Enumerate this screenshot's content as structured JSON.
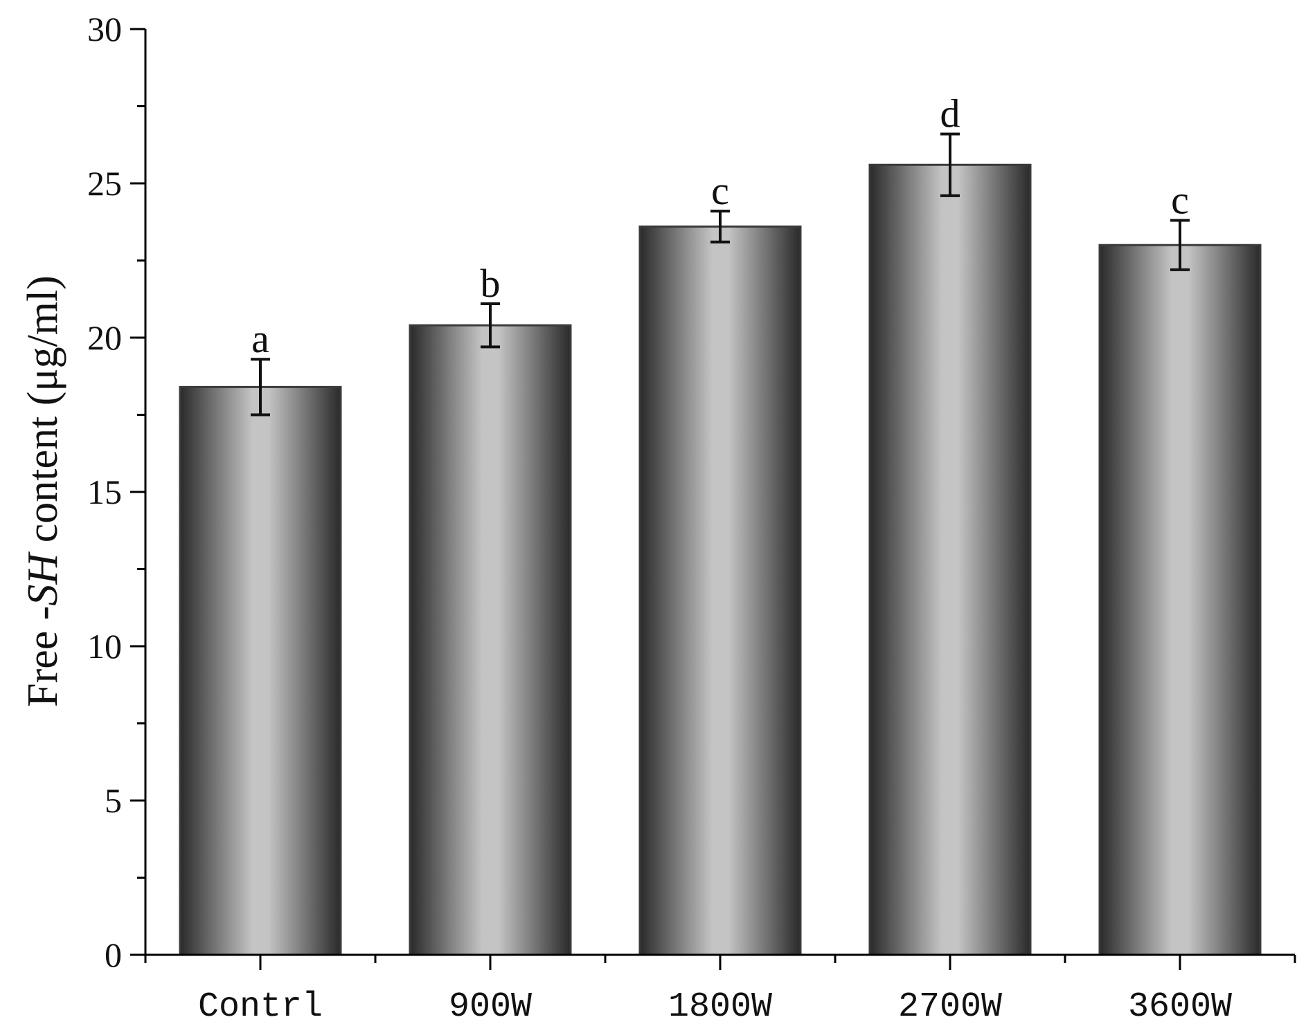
{
  "chart_data": {
    "type": "bar",
    "categories": [
      "Contrl",
      "900W",
      "1800W",
      "2700W",
      "3600W"
    ],
    "values": [
      18.4,
      20.4,
      23.6,
      25.6,
      23.0
    ],
    "errors": [
      0.9,
      0.7,
      0.5,
      1.0,
      0.8
    ],
    "significance": [
      "a",
      "b",
      "c",
      "d",
      "c"
    ],
    "ylabel": {
      "prefix": "Free -",
      "italic": "SH",
      "suffix": " content (μg/ml)"
    },
    "xlabel": "",
    "title": "",
    "ylim": [
      0,
      30
    ],
    "yticks": [
      0,
      5,
      10,
      15,
      20,
      25,
      30
    ],
    "grid": false,
    "legend": "none",
    "colors": {
      "bar_edge": "#3a3a3a",
      "bar_light": "#c4c4c4",
      "bar_dark": "#2a2a2a",
      "axis": "#000000"
    }
  }
}
